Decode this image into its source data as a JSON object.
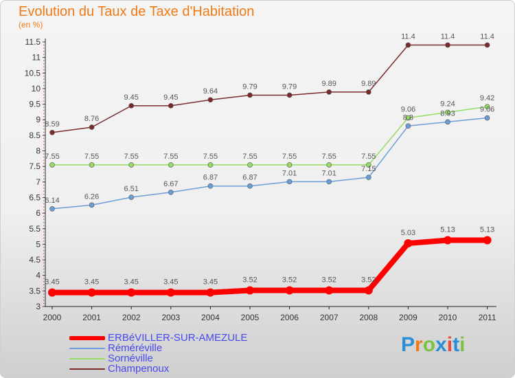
{
  "title": "Evolution du Taux de Taxe d'Habitation",
  "unit_label": "(en %)",
  "logo": {
    "text": "Proxiti",
    "colors": [
      "#2a8fd6",
      "#f07a16",
      "#7bc142",
      "#2a8fd6",
      "#e84b3c",
      "#2a8fd6",
      "#7bc142"
    ]
  },
  "chart_data": {
    "type": "line",
    "title": "Evolution du Taux de Taxe d'Habitation",
    "ylabel": "(en %)",
    "x": [
      "2000",
      "2001",
      "2002",
      "2003",
      "2004",
      "2005",
      "2006",
      "2007",
      "2008",
      "2009",
      "2010",
      "2011"
    ],
    "ylim": [
      3,
      11.5
    ],
    "yticks": [
      "3",
      "3.5",
      "4",
      "4.5",
      "5",
      "5.5",
      "6",
      "6.5",
      "7",
      "7.5",
      "8",
      "8.5",
      "9",
      "9.5",
      "10",
      "10.5",
      "11",
      "11.5"
    ],
    "grid": false,
    "legend": "bottom-left",
    "series": [
      {
        "name": "ERBéVILLER-SUR-AMEZULE",
        "color": "#ff0000",
        "values": [
          3.45,
          3.45,
          3.45,
          3.45,
          3.45,
          3.52,
          3.52,
          3.52,
          3.52,
          5.03,
          5.13,
          5.13
        ]
      },
      {
        "name": "Réméréville",
        "color": "#6a9ed8",
        "values": [
          6.14,
          6.26,
          6.51,
          6.67,
          6.87,
          6.87,
          7.01,
          7.01,
          7.15,
          8.8,
          8.93,
          9.06
        ]
      },
      {
        "name": "Sornéville",
        "color": "#96dc64",
        "values": [
          7.55,
          7.55,
          7.55,
          7.55,
          7.55,
          7.55,
          7.55,
          7.55,
          7.55,
          9.06,
          9.24,
          9.42
        ]
      },
      {
        "name": "Champenoux",
        "color": "#7a2a2a",
        "values": [
          8.59,
          8.76,
          9.45,
          9.45,
          9.64,
          9.79,
          9.79,
          9.89,
          9.89,
          11.4,
          11.4,
          11.4
        ]
      }
    ]
  }
}
